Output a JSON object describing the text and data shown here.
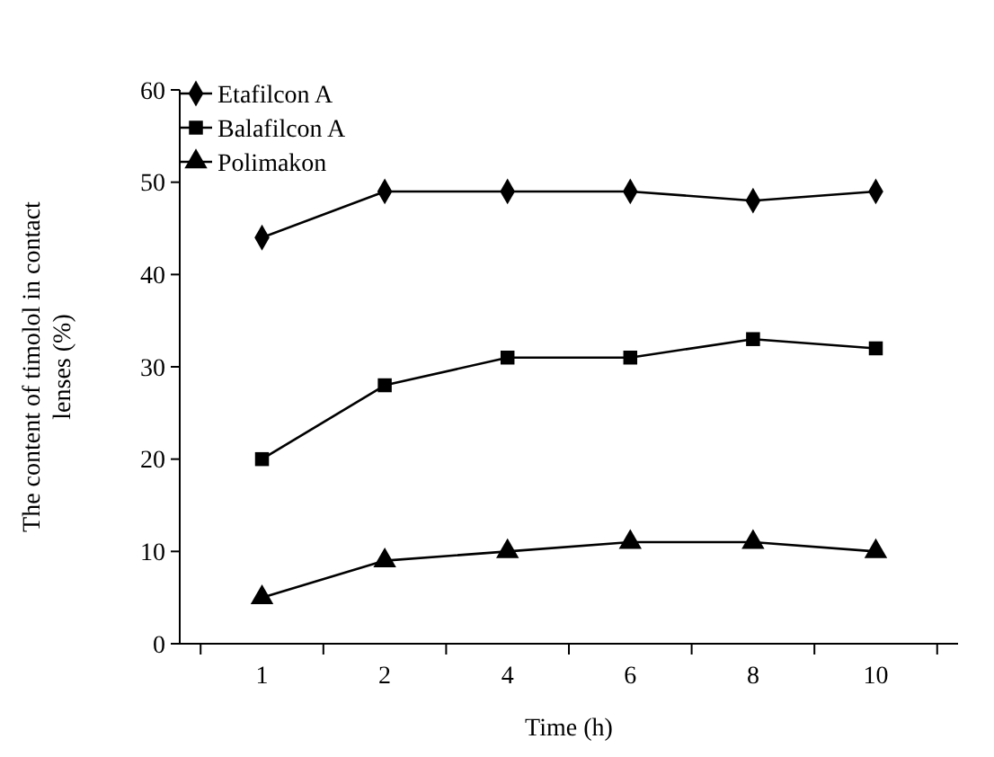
{
  "chart_data": {
    "type": "line",
    "xlabel": "Time (h)",
    "ylabel": "The content of timolol in contact lenses (%)",
    "categories": [
      "1",
      "2",
      "4",
      "6",
      "8",
      "10"
    ],
    "ylim": [
      0,
      60
    ],
    "yticks": [
      0,
      10,
      20,
      30,
      40,
      50,
      60
    ],
    "legend": "top left",
    "grid": false,
    "line_style": "solid",
    "series": [
      {
        "name": "Etafilcon A",
        "color": "#000000",
        "marker": "diamond",
        "values": [
          44,
          49,
          49,
          49,
          48,
          49
        ]
      },
      {
        "name": "Balafilcon A",
        "color": "#000000",
        "marker": "square",
        "values": [
          20,
          28,
          31,
          31,
          33,
          32
        ]
      },
      {
        "name": "Polimakon",
        "color": "#000000",
        "marker": "triangle",
        "values": [
          5,
          9,
          10,
          11,
          11,
          10
        ]
      }
    ]
  }
}
